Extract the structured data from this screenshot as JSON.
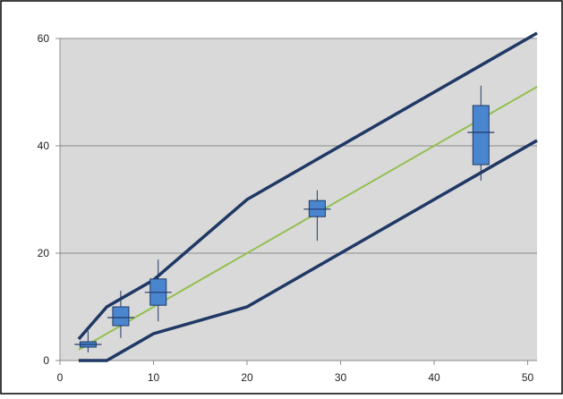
{
  "chart_data": {
    "type": "line",
    "title": "",
    "xlabel": "",
    "ylabel": "",
    "xlim": [
      0,
      51
    ],
    "ylim": [
      0,
      60
    ],
    "x_ticks": [
      "0",
      "10",
      "20",
      "30",
      "40",
      "50"
    ],
    "y_ticks": [
      "0",
      "20",
      "40",
      "60"
    ],
    "grid": "horizontal",
    "legend": "none",
    "colors": {
      "plot_background": "#d9d9d9",
      "band_lines": "#1f3864",
      "identity_line": "#92c050",
      "box_fill": "#4a86d0",
      "box_stroke": "#1f3864"
    },
    "series": [
      {
        "kind": "line",
        "role": "upper-band",
        "x": [
          2,
          5,
          10,
          20,
          51
        ],
        "y": [
          4,
          10,
          15,
          30,
          61
        ]
      },
      {
        "kind": "line",
        "role": "identity",
        "x": [
          2,
          51
        ],
        "y": [
          2,
          51
        ]
      },
      {
        "kind": "line",
        "role": "lower-band",
        "x": [
          2,
          5,
          10,
          20,
          51
        ],
        "y": [
          0,
          0,
          5,
          10,
          41
        ]
      }
    ],
    "boxes": [
      {
        "x": 3,
        "whisker_low": 1.5,
        "q1": 2.5,
        "median": 3,
        "q3": 3.5,
        "whisker_high": 5.5
      },
      {
        "x": 6.5,
        "whisker_low": 4.2,
        "q1": 6.5,
        "median": 8,
        "q3": 10,
        "whisker_high": 13
      },
      {
        "x": 10.5,
        "whisker_low": 7.3,
        "q1": 10.3,
        "median": 12.7,
        "q3": 15.2,
        "whisker_high": 18.8
      },
      {
        "x": 27.5,
        "whisker_low": 22.3,
        "q1": 26.8,
        "median": 28.2,
        "q3": 29.8,
        "whisker_high": 31.7
      },
      {
        "x": 45,
        "whisker_low": 33.5,
        "q1": 36.5,
        "median": 42.5,
        "q3": 47.5,
        "whisker_high": 51.2
      }
    ]
  }
}
